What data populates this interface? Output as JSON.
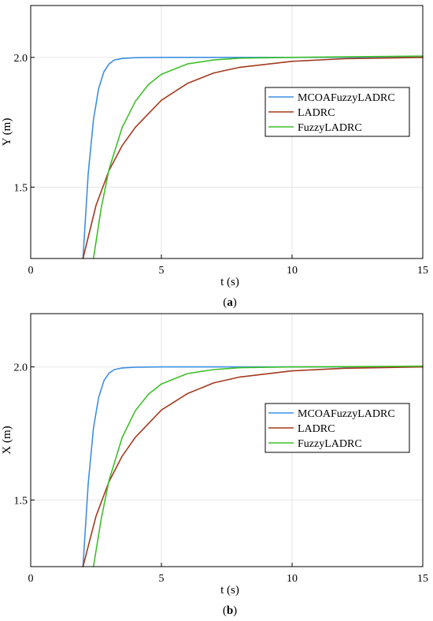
{
  "chart_data": [
    {
      "type": "line",
      "caption_open": "(",
      "caption_letter": "a",
      "caption_close": ")",
      "xlabel": "t (s)",
      "ylabel": "Y (m)",
      "xlim": [
        0,
        15
      ],
      "ylim": [
        1.225,
        2.2
      ],
      "xticks": [
        0,
        5,
        10,
        15
      ],
      "xtick_labels": [
        "0",
        "5",
        "10",
        "15"
      ],
      "yticks": [
        1.5,
        2.0
      ],
      "ytick_labels": [
        "1.5",
        "2.0"
      ],
      "grid": true,
      "legend_position": "right-middle",
      "series": [
        {
          "name": "MCOAFuzzyLADRC",
          "color": "#3d8fe0",
          "x": [
            2.0,
            2.2,
            2.4,
            2.6,
            2.8,
            3.0,
            3.2,
            3.5,
            4.0,
            5.0,
            7.0,
            10.0,
            15.0
          ],
          "y": [
            1.225,
            1.55,
            1.76,
            1.88,
            1.945,
            1.975,
            1.99,
            1.996,
            1.999,
            2.0,
            2.0,
            2.0,
            2.0
          ]
        },
        {
          "name": "LADRC",
          "color": "#a33a1e",
          "x": [
            2.0,
            2.5,
            3.0,
            3.5,
            4.0,
            5.0,
            6.0,
            7.0,
            8.0,
            10.0,
            12.0,
            15.0
          ],
          "y": [
            1.225,
            1.43,
            1.565,
            1.66,
            1.73,
            1.835,
            1.9,
            1.94,
            1.962,
            1.985,
            1.995,
            2.0
          ]
        },
        {
          "name": "FuzzyLADRC",
          "color": "#3fbf2a",
          "x": [
            2.4,
            2.7,
            3.0,
            3.5,
            4.0,
            4.5,
            5.0,
            6.0,
            7.0,
            8.0,
            10.0,
            15.0
          ],
          "y": [
            1.225,
            1.42,
            1.57,
            1.73,
            1.83,
            1.895,
            1.935,
            1.975,
            1.99,
            1.997,
            2.0,
            2.005
          ]
        }
      ]
    },
    {
      "type": "line",
      "caption_open": "(",
      "caption_letter": "b",
      "caption_close": ")",
      "xlabel": "t (s)",
      "ylabel": "X (m)",
      "xlim": [
        0,
        15
      ],
      "ylim": [
        1.25,
        2.2
      ],
      "xticks": [
        0,
        5,
        10,
        15
      ],
      "xtick_labels": [
        "0",
        "5",
        "10",
        "15"
      ],
      "yticks": [
        1.5,
        2.0
      ],
      "ytick_labels": [
        "1.5",
        "2.0"
      ],
      "grid": true,
      "legend_position": "right-middle",
      "series": [
        {
          "name": "MCOAFuzzyLADRC",
          "color": "#3d8fe0",
          "x": [
            2.0,
            2.2,
            2.4,
            2.6,
            2.8,
            3.0,
            3.2,
            3.5,
            4.0,
            5.0,
            7.0,
            10.0,
            15.0
          ],
          "y": [
            1.25,
            1.56,
            1.77,
            1.885,
            1.948,
            1.977,
            1.99,
            1.996,
            1.999,
            2.0,
            2.0,
            2.0,
            2.0
          ]
        },
        {
          "name": "LADRC",
          "color": "#a33a1e",
          "x": [
            2.0,
            2.5,
            3.0,
            3.5,
            4.0,
            5.0,
            6.0,
            7.0,
            8.0,
            10.0,
            12.0,
            15.0
          ],
          "y": [
            1.25,
            1.44,
            1.57,
            1.665,
            1.735,
            1.838,
            1.9,
            1.94,
            1.962,
            1.985,
            1.995,
            2.0
          ]
        },
        {
          "name": "FuzzyLADRC",
          "color": "#3fbf2a",
          "x": [
            2.4,
            2.7,
            3.0,
            3.5,
            4.0,
            4.5,
            5.0,
            6.0,
            7.0,
            8.0,
            10.0,
            15.0
          ],
          "y": [
            1.25,
            1.43,
            1.575,
            1.735,
            1.835,
            1.897,
            1.936,
            1.975,
            1.99,
            1.997,
            2.0,
            2.003
          ]
        }
      ]
    }
  ]
}
